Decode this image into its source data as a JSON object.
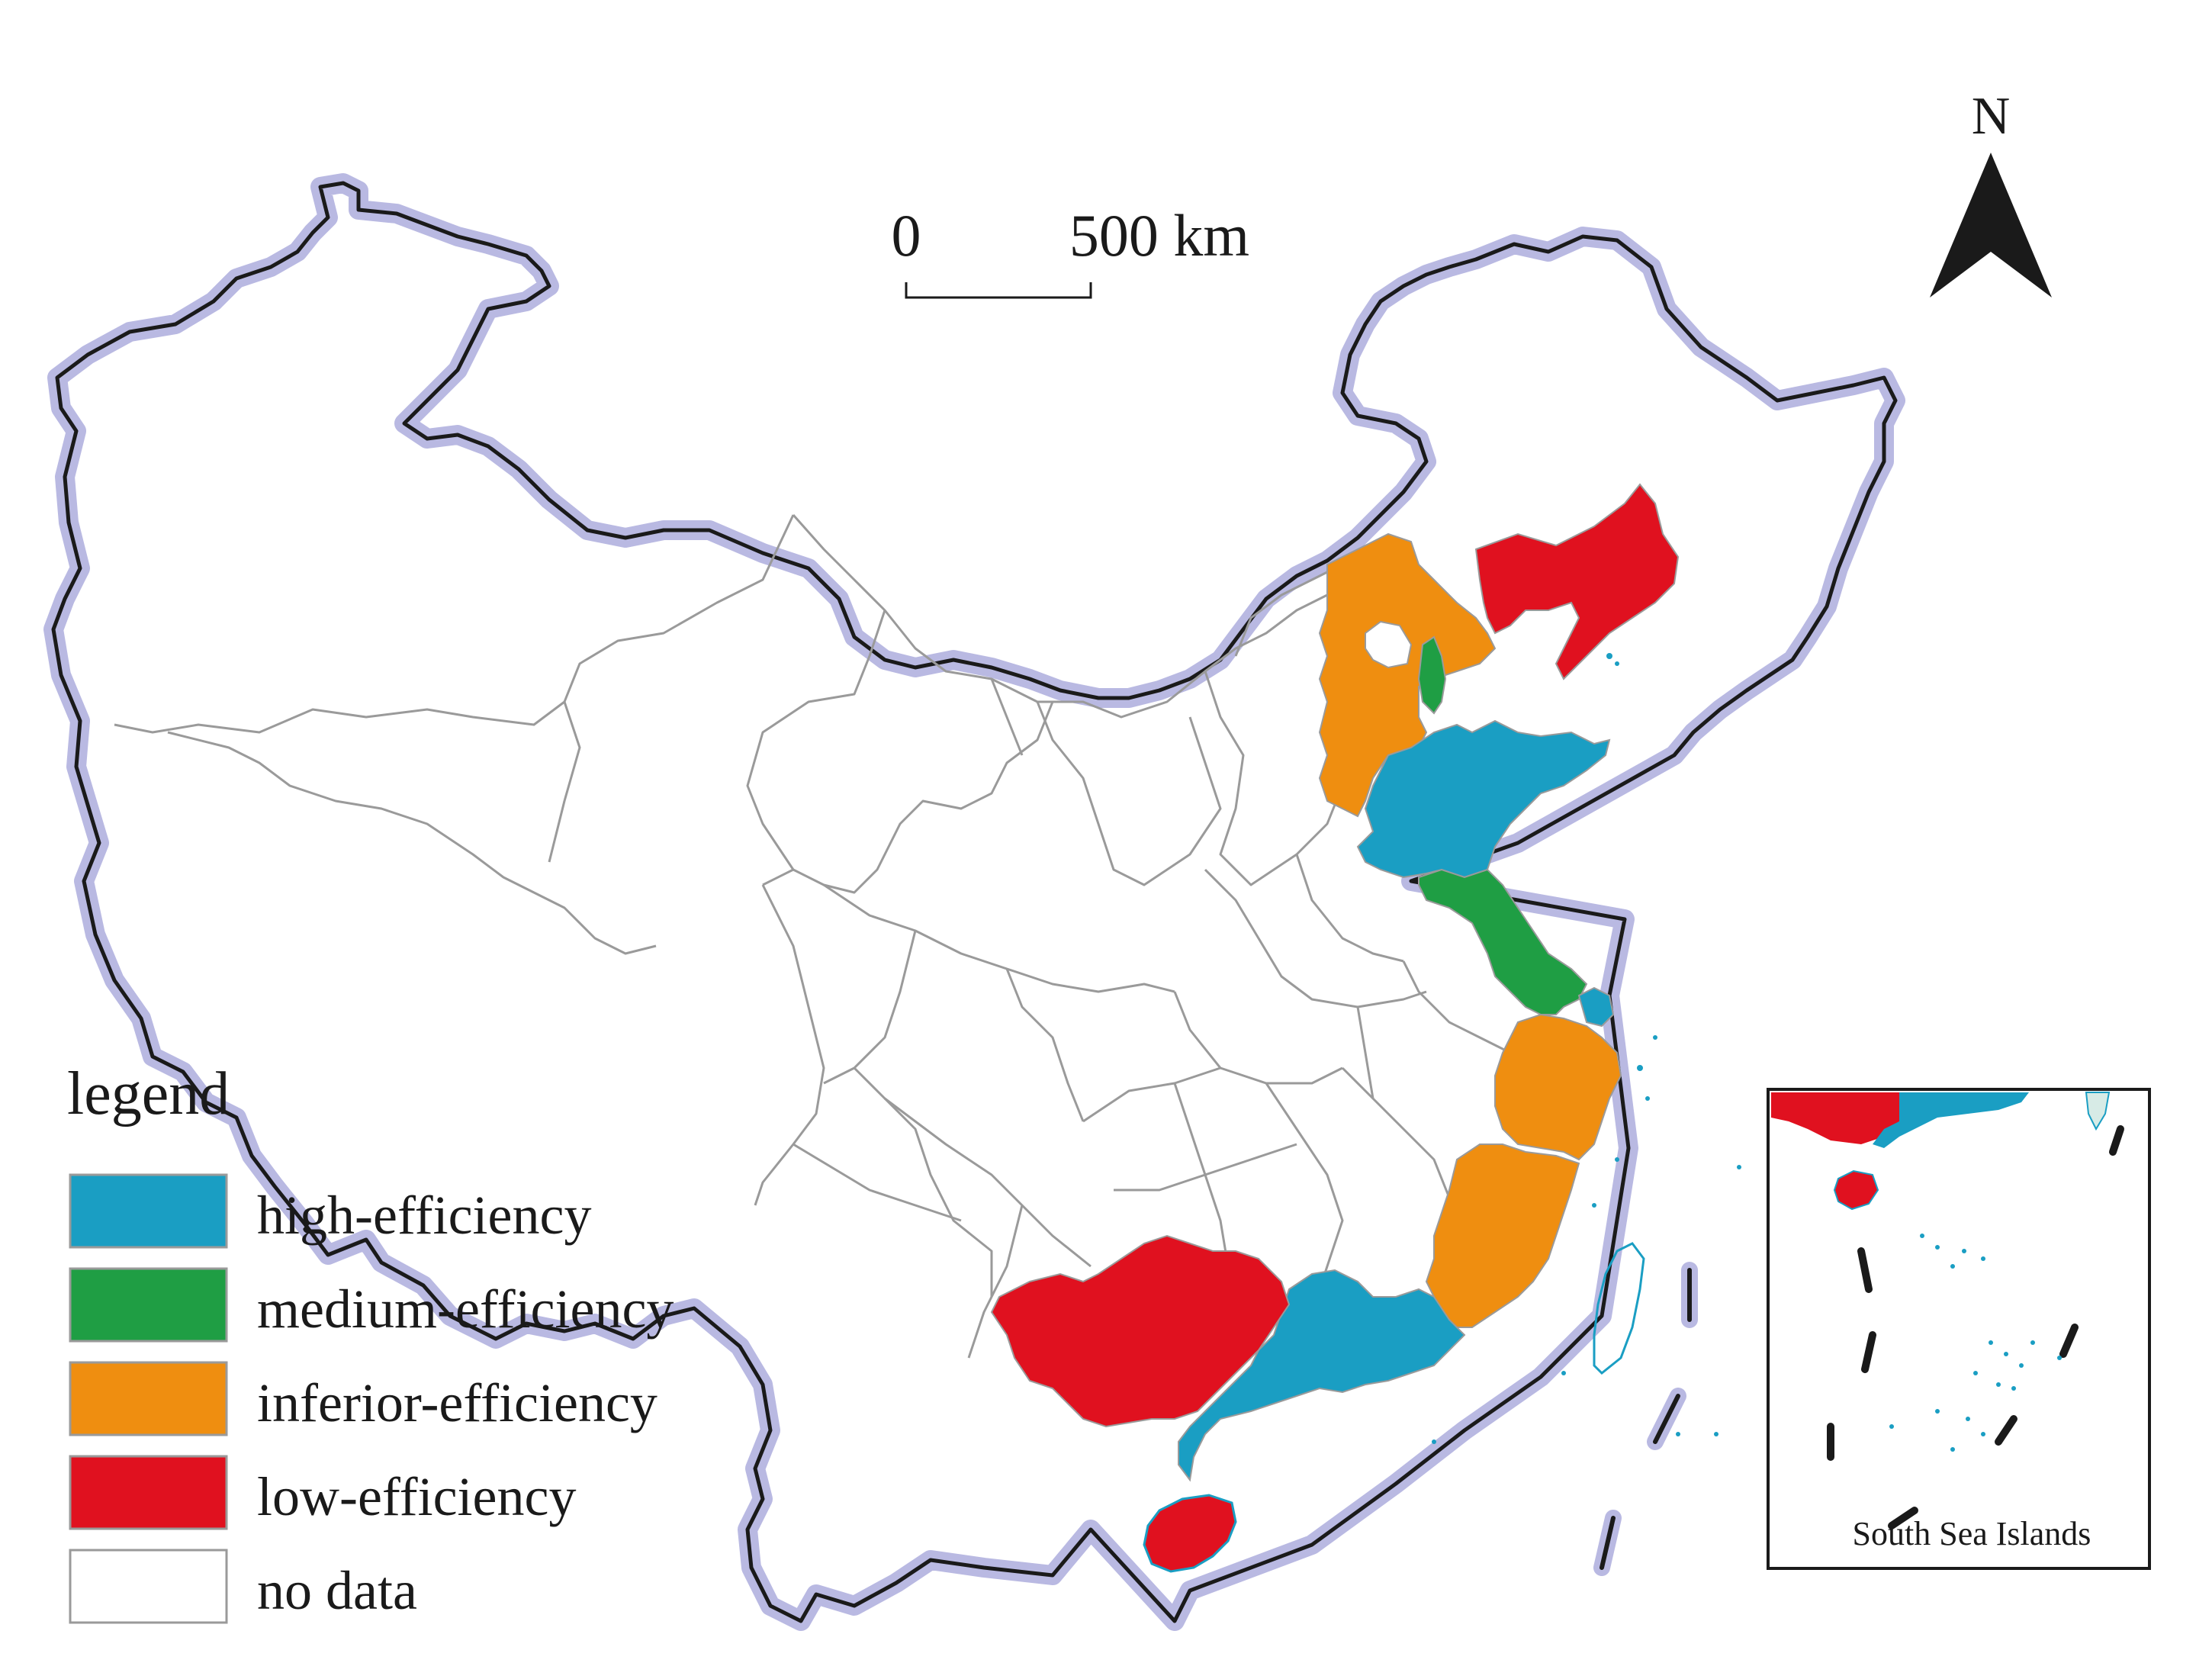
{
  "north_label": "N",
  "scale_bar": {
    "zero_label": "0",
    "distance_label": "500 km"
  },
  "legend": {
    "title": "legend",
    "items": [
      {
        "key": "high",
        "label": "high-efficiency",
        "color": "#1a9ec3"
      },
      {
        "key": "medium",
        "label": "medium-efficiency",
        "color": "#1f9e44"
      },
      {
        "key": "inferior",
        "label": "inferior-efficiency",
        "color": "#ef8e10"
      },
      {
        "key": "low",
        "label": "low-efficiency",
        "color": "#e0111f"
      },
      {
        "key": "none",
        "label": "no data",
        "color": "#ffffff"
      }
    ]
  },
  "regions": [
    {
      "name": "Liaoning",
      "class": "low"
    },
    {
      "name": "Hebei",
      "class": "inferior"
    },
    {
      "name": "Tianjin",
      "class": "medium"
    },
    {
      "name": "Beijing",
      "class": "none"
    },
    {
      "name": "Shandong",
      "class": "high"
    },
    {
      "name": "Jiangsu",
      "class": "medium"
    },
    {
      "name": "Shanghai",
      "class": "high"
    },
    {
      "name": "Zhejiang",
      "class": "inferior"
    },
    {
      "name": "Fujian",
      "class": "inferior"
    },
    {
      "name": "Guangdong",
      "class": "high"
    },
    {
      "name": "Guangxi",
      "class": "low"
    },
    {
      "name": "Hainan",
      "class": "low"
    }
  ],
  "inset": {
    "label": "South Sea Islands"
  },
  "colors": {
    "border_halo": "#b9b9e2",
    "border_line": "#1a1a1a",
    "province_line": "#9a9a9a",
    "water": "#1a9ec3"
  }
}
